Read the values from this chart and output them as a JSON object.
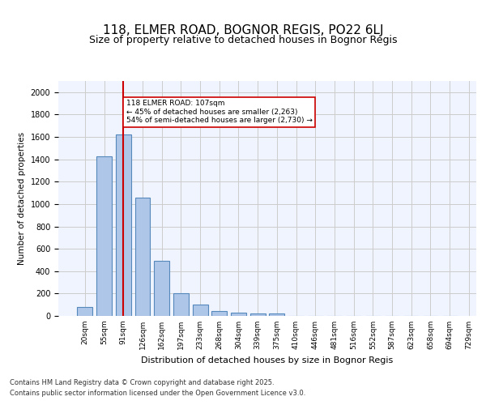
{
  "title": "118, ELMER ROAD, BOGNOR REGIS, PO22 6LJ",
  "subtitle": "Size of property relative to detached houses in Bognor Regis",
  "xlabel": "Distribution of detached houses by size in Bognor Regis",
  "ylabel": "Number of detached properties",
  "bar_values": [
    80,
    1425,
    1625,
    1055,
    495,
    200,
    100,
    40,
    30,
    20,
    20,
    0,
    0,
    0,
    0,
    0,
    0,
    0,
    0,
    0
  ],
  "bin_labels": [
    "20sqm",
    "55sqm",
    "91sqm",
    "126sqm",
    "162sqm",
    "197sqm",
    "233sqm",
    "268sqm",
    "304sqm",
    "339sqm",
    "375sqm",
    "410sqm",
    "446sqm",
    "481sqm",
    "516sqm",
    "552sqm",
    "587sqm",
    "623sqm",
    "658sqm",
    "694sqm",
    "729sqm"
  ],
  "bar_color": "#aec6e8",
  "bar_edge_color": "#5588bb",
  "grid_color": "#cccccc",
  "bg_color": "#f0f4ff",
  "red_line_x": 2,
  "annotation_text": "118 ELMER ROAD: 107sqm\n← 45% of detached houses are smaller (2,263)\n54% of semi-detached houses are larger (2,730) →",
  "annotation_box_color": "#ffffff",
  "annotation_box_edge": "#cc0000",
  "red_line_color": "#cc0000",
  "ylim": [
    0,
    2100
  ],
  "yticks": [
    0,
    200,
    400,
    600,
    800,
    1000,
    1200,
    1400,
    1600,
    1800,
    2000
  ],
  "footer_line1": "Contains HM Land Registry data © Crown copyright and database right 2025.",
  "footer_line2": "Contains public sector information licensed under the Open Government Licence v3.0."
}
